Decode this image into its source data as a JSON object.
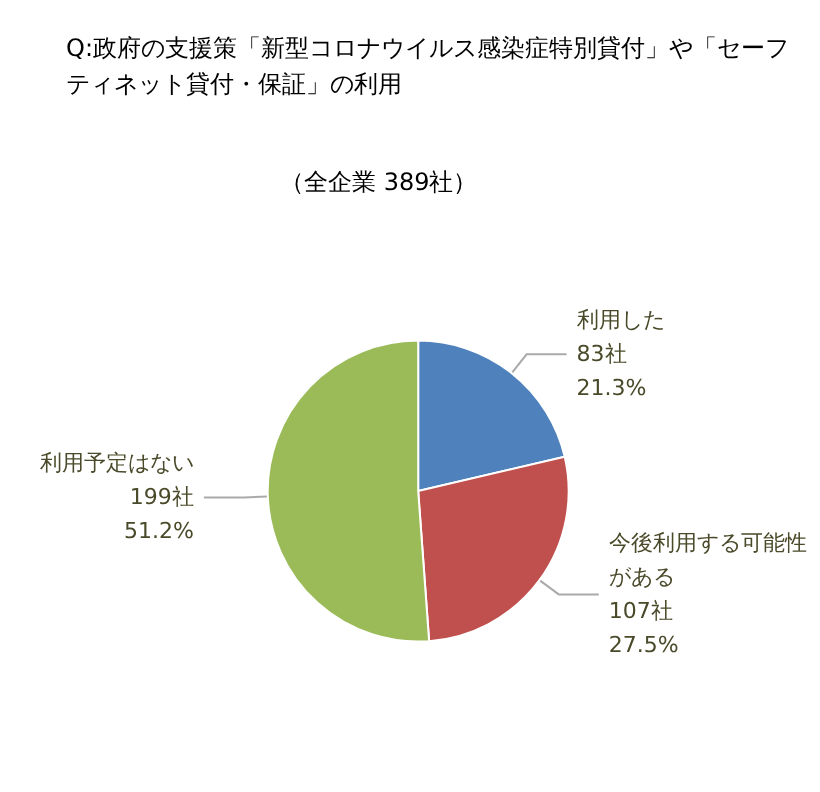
{
  "chart_data": {
    "type": "pie",
    "title": "Q:政府の支援策「新型コロナウイルス感染症特別貸付」や「セーフティネット貸付・保証」の利用",
    "subtitle": "（全企業 389社）",
    "categories": [
      "利用した",
      "今後利用する可能性がある",
      "利用予定はない"
    ],
    "values": [
      83,
      107,
      199
    ],
    "value_labels": [
      "83社\n21.3%",
      "107社\n27.5%",
      "199社\n51.2%"
    ],
    "colors": [
      "#4f81bd",
      "#c0504d",
      "#9bbb59"
    ],
    "legend": false
  }
}
